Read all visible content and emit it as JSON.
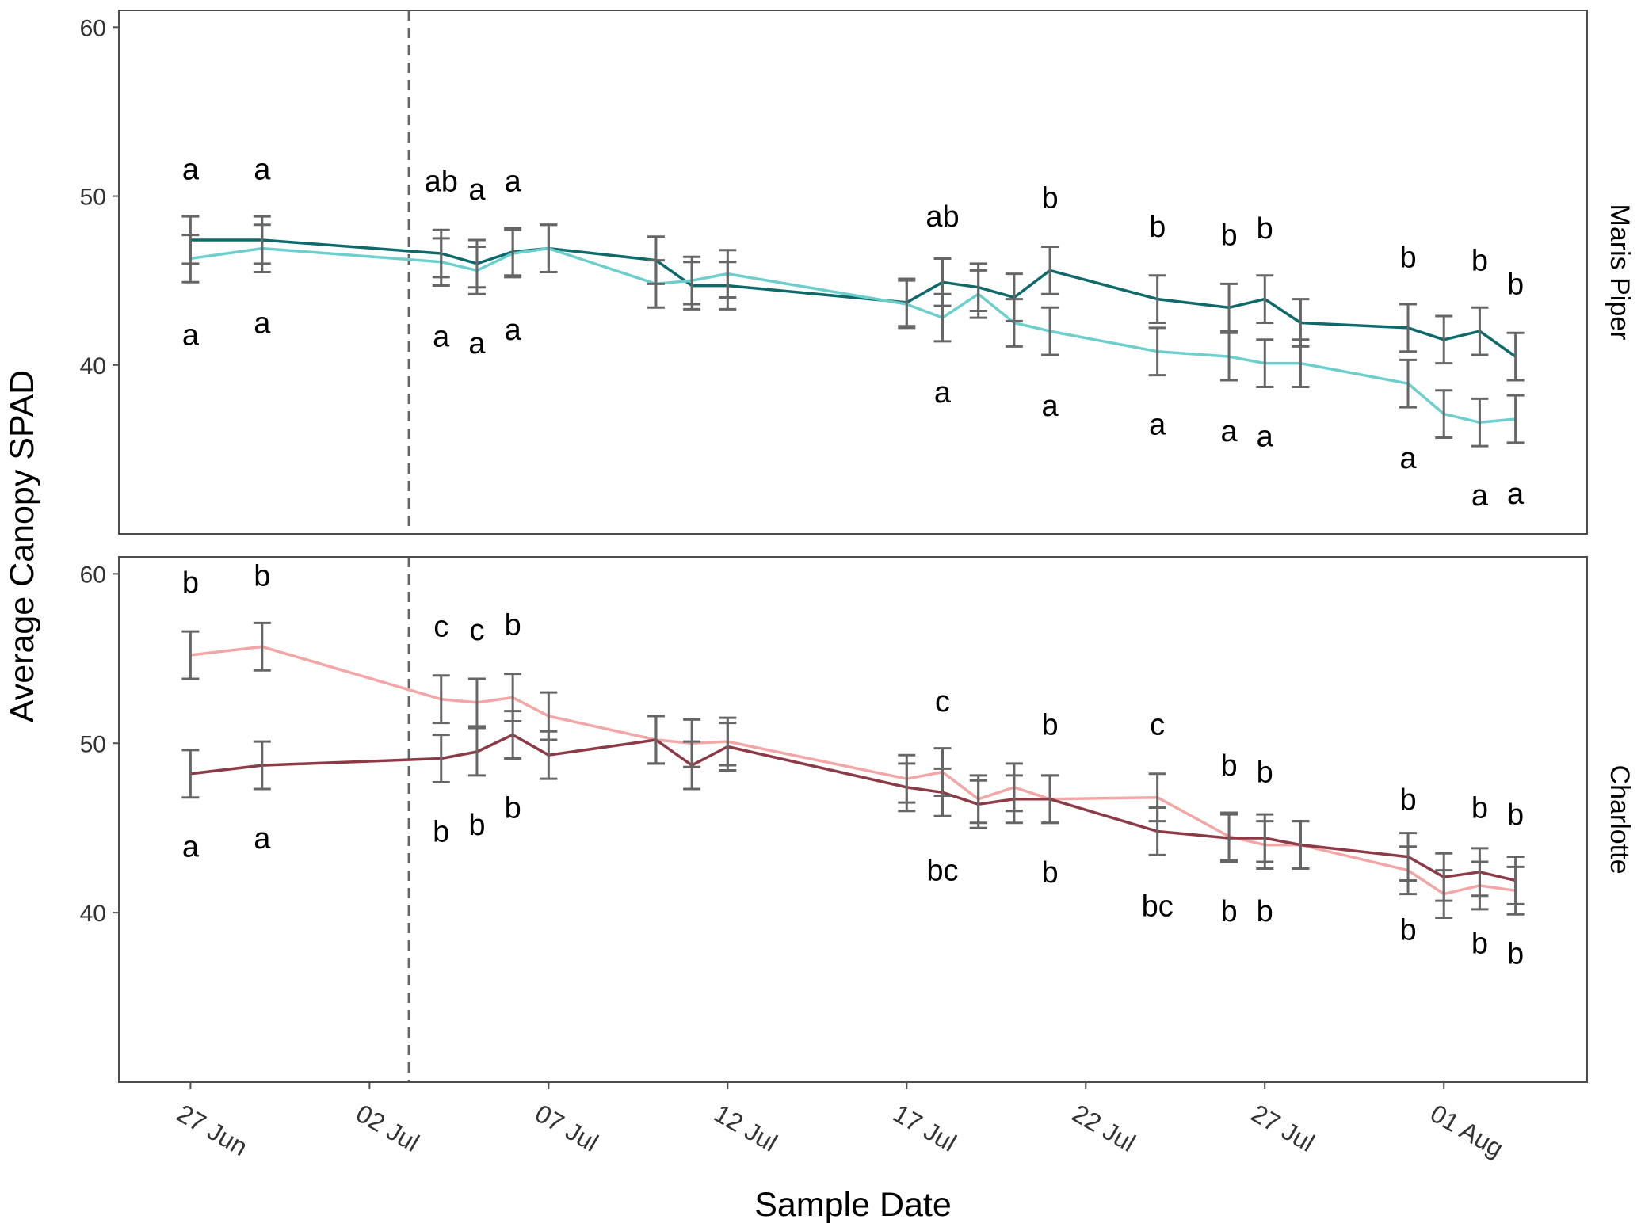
{
  "chart_data": {
    "type": "line",
    "ylabel": "Average Canopy SPAD",
    "xlabel": "Sample Date",
    "y_ticks": [
      40,
      50,
      60
    ],
    "y_range": [
      30,
      61
    ],
    "x_range_days": [
      -2,
      39
    ],
    "x_ticks": [
      {
        "label": "27 Jun",
        "day": 0
      },
      {
        "label": "02 Jul",
        "day": 5
      },
      {
        "label": "07 Jul",
        "day": 10
      },
      {
        "label": "12 Jul",
        "day": 15
      },
      {
        "label": "17 Jul",
        "day": 20
      },
      {
        "label": "22 Jul",
        "day": 25
      },
      {
        "label": "27 Jul",
        "day": 30
      },
      {
        "label": "01 Aug",
        "day": 35
      }
    ],
    "vline_day": 6.1,
    "colors": {
      "mp_dark": "#0e6a6a",
      "mp_light": "#6ccfcc",
      "ch_dark": "#8c3a46",
      "ch_light": "#f2a6a6",
      "errorbar": "#666666",
      "axis": "#4d4d4d",
      "text": "#000000",
      "tick_text": "#333333"
    },
    "panels": [
      {
        "id": "maris-piper",
        "strip": "Maris Piper",
        "series": [
          {
            "name": "Maris Piper dark",
            "color_key": "mp_dark",
            "points": [
              {
                "d": 0,
                "y": 47.4,
                "e": 1.4
              },
              {
                "d": 2,
                "y": 47.4,
                "e": 1.4
              },
              {
                "d": 7,
                "y": 46.6,
                "e": 1.4
              },
              {
                "d": 8,
                "y": 46.0,
                "e": 1.4
              },
              {
                "d": 9,
                "y": 46.7,
                "e": 1.4
              },
              {
                "d": 10,
                "y": 46.9,
                "e": 1.4
              },
              {
                "d": 13,
                "y": 46.2,
                "e": 1.4
              },
              {
                "d": 14,
                "y": 44.7,
                "e": 1.4
              },
              {
                "d": 15,
                "y": 44.7,
                "e": 1.4
              },
              {
                "d": 20,
                "y": 43.7,
                "e": 1.4
              },
              {
                "d": 21,
                "y": 44.9,
                "e": 1.4
              },
              {
                "d": 22,
                "y": 44.6,
                "e": 1.4
              },
              {
                "d": 23,
                "y": 44.0,
                "e": 1.4
              },
              {
                "d": 24,
                "y": 45.6,
                "e": 1.4
              },
              {
                "d": 27,
                "y": 43.9,
                "e": 1.4
              },
              {
                "d": 29,
                "y": 43.4,
                "e": 1.4
              },
              {
                "d": 30,
                "y": 43.9,
                "e": 1.4
              },
              {
                "d": 31,
                "y": 42.5,
                "e": 1.4
              },
              {
                "d": 34,
                "y": 42.2,
                "e": 1.4
              },
              {
                "d": 35,
                "y": 41.5,
                "e": 1.4
              },
              {
                "d": 36,
                "y": 42.0,
                "e": 1.4
              },
              {
                "d": 37,
                "y": 40.5,
                "e": 1.4
              }
            ],
            "letters": [
              {
                "d": 0,
                "y": 51.6,
                "t": "a"
              },
              {
                "d": 2,
                "y": 51.6,
                "t": "a"
              },
              {
                "d": 7,
                "y": 50.9,
                "t": "ab"
              },
              {
                "d": 8,
                "y": 50.4,
                "t": "a"
              },
              {
                "d": 9,
                "y": 50.9,
                "t": "a"
              },
              {
                "d": 21,
                "y": 48.8,
                "t": "ab"
              },
              {
                "d": 24,
                "y": 49.9,
                "t": "b"
              },
              {
                "d": 27,
                "y": 48.2,
                "t": "b"
              },
              {
                "d": 29,
                "y": 47.7,
                "t": "b"
              },
              {
                "d": 30,
                "y": 48.1,
                "t": "b"
              },
              {
                "d": 34,
                "y": 46.4,
                "t": "b"
              },
              {
                "d": 36,
                "y": 46.2,
                "t": "b"
              },
              {
                "d": 37,
                "y": 44.8,
                "t": "b"
              }
            ]
          },
          {
            "name": "Maris Piper light",
            "color_key": "mp_light",
            "points": [
              {
                "d": 0,
                "y": 46.3,
                "e": 1.4
              },
              {
                "d": 2,
                "y": 46.9,
                "e": 1.4
              },
              {
                "d": 7,
                "y": 46.1,
                "e": 1.4
              },
              {
                "d": 8,
                "y": 45.6,
                "e": 1.4
              },
              {
                "d": 9,
                "y": 46.6,
                "e": 1.4
              },
              {
                "d": 10,
                "y": 46.9,
                "e": 1.4
              },
              {
                "d": 13,
                "y": 44.8,
                "e": 1.4
              },
              {
                "d": 14,
                "y": 45.0,
                "e": 1.4
              },
              {
                "d": 15,
                "y": 45.4,
                "e": 1.4
              },
              {
                "d": 20,
                "y": 43.6,
                "e": 1.4
              },
              {
                "d": 21,
                "y": 42.8,
                "e": 1.4
              },
              {
                "d": 22,
                "y": 44.2,
                "e": 1.4
              },
              {
                "d": 23,
                "y": 42.5,
                "e": 1.4
              },
              {
                "d": 24,
                "y": 42.0,
                "e": 1.4
              },
              {
                "d": 27,
                "y": 40.8,
                "e": 1.4
              },
              {
                "d": 29,
                "y": 40.5,
                "e": 1.4
              },
              {
                "d": 30,
                "y": 40.1,
                "e": 1.4
              },
              {
                "d": 31,
                "y": 40.1,
                "e": 1.4
              },
              {
                "d": 34,
                "y": 38.9,
                "e": 1.4
              },
              {
                "d": 35,
                "y": 37.1,
                "e": 1.4
              },
              {
                "d": 36,
                "y": 36.6,
                "e": 1.4
              },
              {
                "d": 37,
                "y": 36.8,
                "e": 1.4
              }
            ],
            "letters": [
              {
                "d": 0,
                "y": 41.8,
                "t": "a"
              },
              {
                "d": 2,
                "y": 42.5,
                "t": "a"
              },
              {
                "d": 7,
                "y": 41.7,
                "t": "a"
              },
              {
                "d": 8,
                "y": 41.3,
                "t": "a"
              },
              {
                "d": 9,
                "y": 42.1,
                "t": "a"
              },
              {
                "d": 21,
                "y": 38.4,
                "t": "a"
              },
              {
                "d": 24,
                "y": 37.6,
                "t": "a"
              },
              {
                "d": 27,
                "y": 36.5,
                "t": "a"
              },
              {
                "d": 29,
                "y": 36.1,
                "t": "a"
              },
              {
                "d": 30,
                "y": 35.8,
                "t": "a"
              },
              {
                "d": 34,
                "y": 34.5,
                "t": "a"
              },
              {
                "d": 36,
                "y": 32.3,
                "t": "a"
              },
              {
                "d": 37,
                "y": 32.4,
                "t": "a"
              }
            ]
          }
        ]
      },
      {
        "id": "charlotte",
        "strip": "Charlotte",
        "series": [
          {
            "name": "Charlotte light",
            "color_key": "ch_light",
            "points": [
              {
                "d": 0,
                "y": 55.2,
                "e": 1.4
              },
              {
                "d": 2,
                "y": 55.7,
                "e": 1.4
              },
              {
                "d": 7,
                "y": 52.6,
                "e": 1.4
              },
              {
                "d": 8,
                "y": 52.4,
                "e": 1.4
              },
              {
                "d": 9,
                "y": 52.7,
                "e": 1.4
              },
              {
                "d": 10,
                "y": 51.6,
                "e": 1.4
              },
              {
                "d": 13,
                "y": 50.2,
                "e": 1.4
              },
              {
                "d": 14,
                "y": 50.0,
                "e": 1.4
              },
              {
                "d": 15,
                "y": 50.1,
                "e": 1.4
              },
              {
                "d": 20,
                "y": 47.9,
                "e": 1.4
              },
              {
                "d": 21,
                "y": 48.3,
                "e": 1.4
              },
              {
                "d": 22,
                "y": 46.7,
                "e": 1.4
              },
              {
                "d": 23,
                "y": 47.4,
                "e": 1.4
              },
              {
                "d": 24,
                "y": 46.7,
                "e": 1.4
              },
              {
                "d": 27,
                "y": 46.8,
                "e": 1.4
              },
              {
                "d": 29,
                "y": 44.5,
                "e": 1.4
              },
              {
                "d": 30,
                "y": 44.0,
                "e": 1.4
              },
              {
                "d": 31,
                "y": 44.0,
                "e": 1.4
              },
              {
                "d": 34,
                "y": 42.5,
                "e": 1.4
              },
              {
                "d": 35,
                "y": 41.1,
                "e": 1.4
              },
              {
                "d": 36,
                "y": 41.6,
                "e": 1.4
              },
              {
                "d": 37,
                "y": 41.3,
                "e": 1.4
              }
            ],
            "letters": [
              {
                "d": 0,
                "y": 59.5,
                "t": "b"
              },
              {
                "d": 2,
                "y": 59.9,
                "t": "b"
              },
              {
                "d": 7,
                "y": 56.9,
                "t": "c"
              },
              {
                "d": 8,
                "y": 56.7,
                "t": "c"
              },
              {
                "d": 9,
                "y": 57.0,
                "t": "b"
              },
              {
                "d": 21,
                "y": 52.5,
                "t": "c"
              },
              {
                "d": 24,
                "y": 51.1,
                "t": "b"
              },
              {
                "d": 27,
                "y": 51.1,
                "t": "c"
              },
              {
                "d": 29,
                "y": 48.7,
                "t": "b"
              },
              {
                "d": 30,
                "y": 48.3,
                "t": "b"
              },
              {
                "d": 34,
                "y": 46.7,
                "t": "b"
              },
              {
                "d": 36,
                "y": 46.2,
                "t": "b"
              },
              {
                "d": 37,
                "y": 45.8,
                "t": "b"
              }
            ]
          },
          {
            "name": "Charlotte dark",
            "color_key": "ch_dark",
            "points": [
              {
                "d": 0,
                "y": 48.2,
                "e": 1.4
              },
              {
                "d": 2,
                "y": 48.7,
                "e": 1.4
              },
              {
                "d": 7,
                "y": 49.1,
                "e": 1.4
              },
              {
                "d": 8,
                "y": 49.5,
                "e": 1.4
              },
              {
                "d": 9,
                "y": 50.5,
                "e": 1.4
              },
              {
                "d": 10,
                "y": 49.3,
                "e": 1.4
              },
              {
                "d": 13,
                "y": 50.2,
                "e": 1.4
              },
              {
                "d": 14,
                "y": 48.7,
                "e": 1.4
              },
              {
                "d": 15,
                "y": 49.8,
                "e": 1.4
              },
              {
                "d": 20,
                "y": 47.4,
                "e": 1.4
              },
              {
                "d": 21,
                "y": 47.1,
                "e": 1.4
              },
              {
                "d": 22,
                "y": 46.4,
                "e": 1.4
              },
              {
                "d": 23,
                "y": 46.7,
                "e": 1.4
              },
              {
                "d": 24,
                "y": 46.7,
                "e": 1.4
              },
              {
                "d": 27,
                "y": 44.8,
                "e": 1.4
              },
              {
                "d": 29,
                "y": 44.4,
                "e": 1.4
              },
              {
                "d": 30,
                "y": 44.4,
                "e": 1.4
              },
              {
                "d": 31,
                "y": 44.0,
                "e": 1.4
              },
              {
                "d": 34,
                "y": 43.3,
                "e": 1.4
              },
              {
                "d": 35,
                "y": 42.1,
                "e": 1.4
              },
              {
                "d": 36,
                "y": 42.4,
                "e": 1.4
              },
              {
                "d": 37,
                "y": 41.9,
                "e": 1.4
              }
            ],
            "letters": [
              {
                "d": 0,
                "y": 43.9,
                "t": "a"
              },
              {
                "d": 2,
                "y": 44.4,
                "t": "a"
              },
              {
                "d": 7,
                "y": 44.8,
                "t": "b"
              },
              {
                "d": 8,
                "y": 45.2,
                "t": "b"
              },
              {
                "d": 9,
                "y": 46.2,
                "t": "b"
              },
              {
                "d": 21,
                "y": 42.5,
                "t": "bc"
              },
              {
                "d": 24,
                "y": 42.4,
                "t": "b"
              },
              {
                "d": 27,
                "y": 40.4,
                "t": "bc"
              },
              {
                "d": 29,
                "y": 40.1,
                "t": "b"
              },
              {
                "d": 30,
                "y": 40.1,
                "t": "b"
              },
              {
                "d": 34,
                "y": 39.0,
                "t": "b"
              },
              {
                "d": 36,
                "y": 38.2,
                "t": "b"
              },
              {
                "d": 37,
                "y": 37.6,
                "t": "b"
              }
            ]
          }
        ]
      }
    ]
  }
}
